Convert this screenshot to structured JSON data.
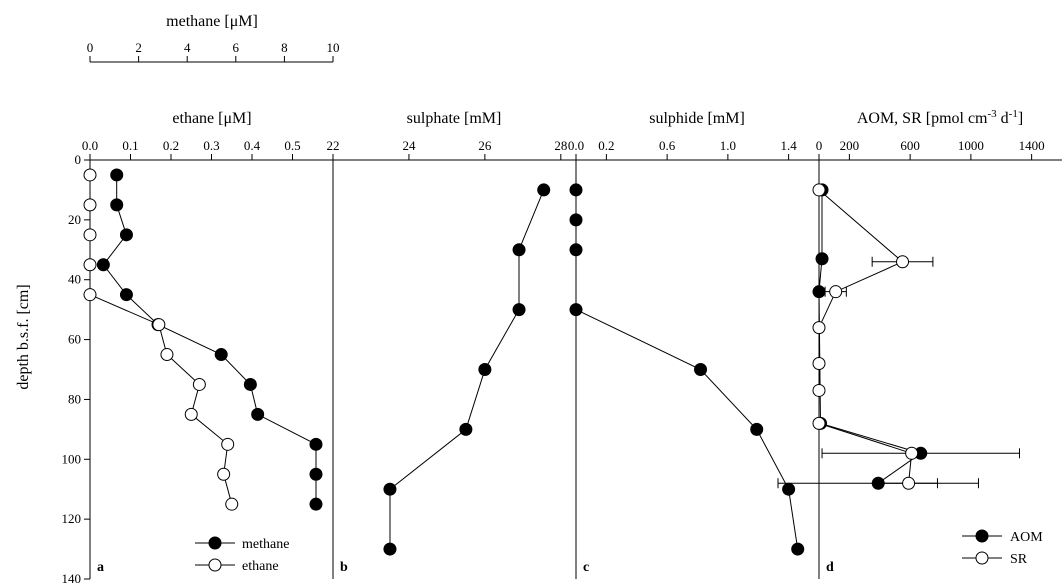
{
  "chart_data": [
    {
      "type": "line",
      "panel": "a",
      "title": "",
      "xaxes": [
        {
          "label": "methane [μM]",
          "lim": [
            0,
            10
          ],
          "ticks": [
            0,
            2,
            4,
            6,
            8,
            10
          ],
          "tick_labels": [
            "0",
            "2",
            "4",
            "6",
            "8",
            "10"
          ]
        },
        {
          "label": "ethane [μM]",
          "lim": [
            0.0,
            0.6
          ],
          "ticks": [
            0.0,
            0.1,
            0.2,
            0.3,
            0.4,
            0.5
          ],
          "tick_labels": [
            "0.0",
            "0.1",
            "0.2",
            "0.3",
            "0.4",
            "0.5"
          ]
        }
      ],
      "ylabel": "depth b.s.f. [cm]",
      "ylim": [
        0,
        140
      ],
      "yticks": [
        0,
        20,
        40,
        60,
        80,
        100,
        120,
        140
      ],
      "ytick_labels": [
        "0",
        "20",
        "40",
        "60",
        "80",
        "100",
        "120",
        "140"
      ],
      "legend": {
        "position": "bottom-right",
        "entries": [
          "methane",
          "ethane"
        ]
      },
      "series": [
        {
          "name": "methane",
          "marker": "filled",
          "axis": 0,
          "x": [
            1.1,
            1.1,
            1.5,
            0.55,
            1.5,
            2.8,
            5.4,
            6.6,
            6.9,
            9.3,
            9.3,
            9.3
          ],
          "y": [
            5,
            15,
            25,
            35,
            45,
            55,
            65,
            75,
            85,
            95,
            105,
            115
          ]
        },
        {
          "name": "ethane",
          "marker": "open",
          "axis": 1,
          "x": [
            0.0,
            0.0,
            0.0,
            0.0,
            0.0,
            0.17,
            0.19,
            0.27,
            0.25,
            0.34,
            0.33,
            0.35
          ],
          "y": [
            5,
            15,
            25,
            35,
            45,
            55,
            65,
            75,
            85,
            95,
            105,
            115
          ]
        }
      ]
    },
    {
      "type": "line",
      "panel": "b",
      "title": "",
      "xlabel": "sulphate [mM]",
      "xlim": [
        22,
        28.4
      ],
      "xticks": [
        22,
        24,
        26,
        28
      ],
      "xtick_labels": [
        "22",
        "24",
        "26",
        "28"
      ],
      "ylim": [
        0,
        140
      ],
      "series": [
        {
          "name": "",
          "marker": "filled",
          "x": [
            27.55,
            26.9,
            26.9,
            26.0,
            25.5,
            23.5,
            23.5
          ],
          "y": [
            10,
            30,
            50,
            70,
            90,
            110,
            130
          ]
        }
      ]
    },
    {
      "type": "line",
      "panel": "c",
      "title": "",
      "xlabel": "sulphide [mM]",
      "xlim": [
        0.0,
        1.6
      ],
      "xticks": [
        0.0,
        0.2,
        0.6,
        1.0,
        1.4
      ],
      "xtick_labels": [
        "0.0",
        "0.2",
        "0.6",
        "1.0",
        "1.4"
      ],
      "ylim": [
        0,
        140
      ],
      "series": [
        {
          "name": "",
          "marker": "filled",
          "x": [
            0.0,
            0.0,
            0.0,
            0.0,
            0.82,
            1.19,
            1.4,
            1.46
          ],
          "y": [
            10,
            20,
            30,
            50,
            70,
            90,
            110,
            130
          ]
        }
      ]
    },
    {
      "type": "line",
      "panel": "d",
      "title": "",
      "xlabel": "AOM, SR [pmol cm",
      "xlabel_sup1": "-3",
      "xlabel_mid": " d",
      "xlabel_sup2": "-1",
      "xlabel_end": "]",
      "xlim": [
        0,
        1600
      ],
      "xticks": [
        0,
        200,
        600,
        1000,
        1400
      ],
      "xtick_labels": [
        "0",
        "200",
        "600",
        "1000",
        "1400"
      ],
      "ylim": [
        0,
        140
      ],
      "legend": {
        "position": "bottom-right",
        "entries": [
          "AOM",
          "SR"
        ]
      },
      "series": [
        {
          "name": "AOM",
          "marker": "filled",
          "x": [
            20,
            20,
            0,
            10,
            670,
            390
          ],
          "y": [
            10,
            33,
            44,
            88,
            98,
            108
          ],
          "xerr": [
            0,
            0,
            0,
            0,
            650,
            660
          ]
        },
        {
          "name": "SR",
          "marker": "open",
          "x": [
            0,
            550,
            110,
            0,
            0,
            0,
            0,
            610,
            590
          ],
          "y": [
            10,
            34,
            44,
            56,
            68,
            77,
            88,
            98,
            108
          ],
          "xerr": [
            0,
            200,
            70,
            0,
            0,
            0,
            0,
            0,
            190
          ]
        }
      ]
    }
  ]
}
